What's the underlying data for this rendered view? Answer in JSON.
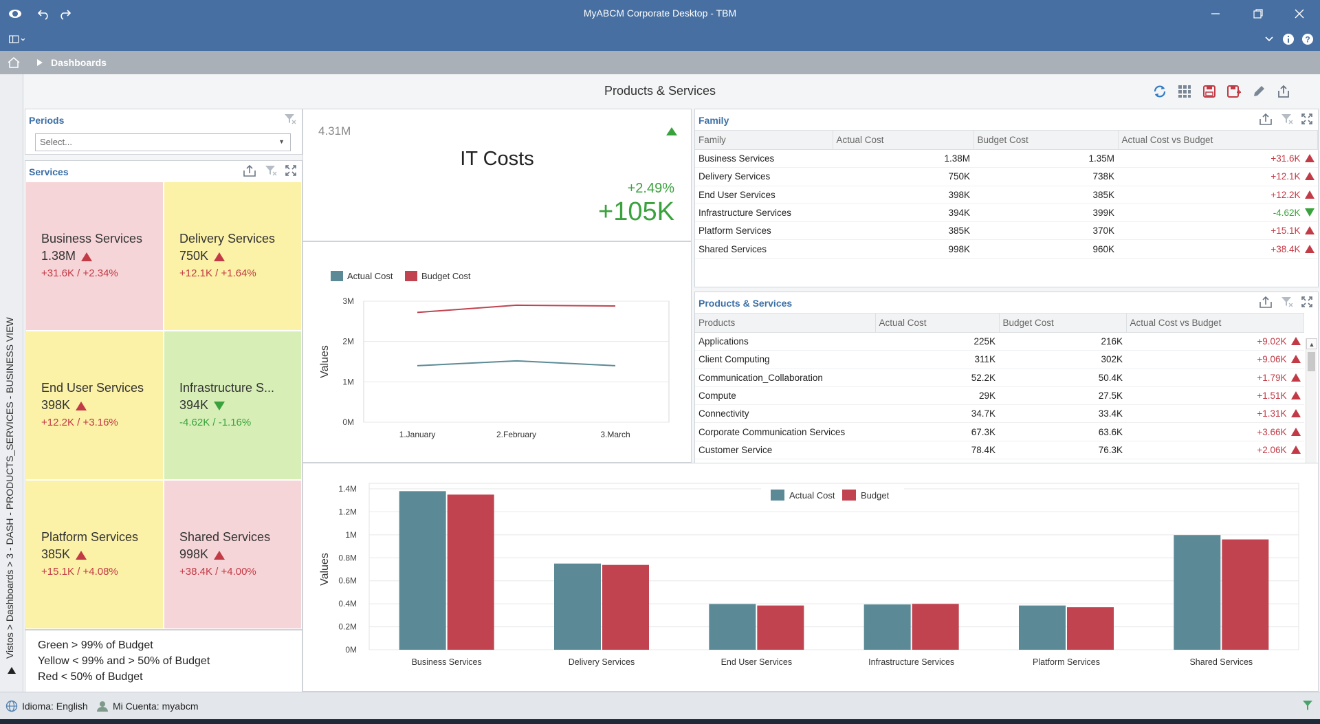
{
  "window": {
    "title": "MyABCM Corporate Desktop - TBM"
  },
  "breadcrumb": {
    "label": "Dashboards"
  },
  "vertical_path": "Vistos > Dashboards > 3 - DASH - PRODUCTS_SERVICES - BUSINESS VIEW",
  "dashboard": {
    "title": "Products & Services"
  },
  "periods": {
    "title": "Periods",
    "placeholder": "Select..."
  },
  "services": {
    "title": "Services",
    "tiles": [
      {
        "name": "Business Services",
        "value": "1.38M",
        "delta": "+31.6K  /  +2.34%",
        "trend": "up",
        "color": "#f6d5d8"
      },
      {
        "name": "Delivery Services",
        "value": "750K",
        "delta": "+12.1K  /  +1.64%",
        "trend": "up",
        "color": "#fbf1a7"
      },
      {
        "name": "End User Services",
        "value": "398K",
        "delta": "+12.2K  /  +3.16%",
        "trend": "up",
        "color": "#fbf1a7"
      },
      {
        "name": "Infrastructure S...",
        "value": "394K",
        "delta": "-4.62K  /  -1.16%",
        "trend": "down",
        "color": "#d7efb7"
      },
      {
        "name": "Platform Services",
        "value": "385K",
        "delta": "+15.1K  /  +4.08%",
        "trend": "up",
        "color": "#fbf1a7"
      },
      {
        "name": "Shared Services",
        "value": "998K",
        "delta": "+38.4K  /  +4.00%",
        "trend": "up",
        "color": "#f6d5d8"
      }
    ],
    "legend": [
      "Green > 99% of Budget",
      "Yellow < 99% and > 50% of Budget",
      "Red < 50% of Budget"
    ]
  },
  "kpi": {
    "target": "4.31M",
    "title": "IT Costs",
    "percent": "+2.49%",
    "absolute": "+105K"
  },
  "family": {
    "title": "Family",
    "columns": [
      "Family",
      "Actual Cost",
      "Budget Cost",
      "Actual Cost vs Budget"
    ],
    "rows": [
      [
        "Business Services",
        "1.38M",
        "1.35M",
        "+31.6K",
        "up"
      ],
      [
        "Delivery Services",
        "750K",
        "738K",
        "+12.1K",
        "up"
      ],
      [
        "End User Services",
        "398K",
        "385K",
        "+12.2K",
        "up"
      ],
      [
        "Infrastructure Services",
        "394K",
        "399K",
        "-4.62K",
        "down"
      ],
      [
        "Platform Services",
        "385K",
        "370K",
        "+15.1K",
        "up"
      ],
      [
        "Shared Services",
        "998K",
        "960K",
        "+38.4K",
        "up"
      ]
    ]
  },
  "products": {
    "title": "Products & Services",
    "columns": [
      "Products",
      "Actual Cost",
      "Budget Cost",
      "Actual Cost vs Budget"
    ],
    "rows": [
      [
        "Applications",
        "225K",
        "216K",
        "+9.02K",
        "up"
      ],
      [
        "Client Computing",
        "311K",
        "302K",
        "+9.06K",
        "up"
      ],
      [
        "Communication_Collaboration",
        "52.2K",
        "50.4K",
        "+1.79K",
        "up"
      ],
      [
        "Compute",
        "29K",
        "27.5K",
        "+1.51K",
        "up"
      ],
      [
        "Connectivity",
        "34.7K",
        "33.4K",
        "+1.31K",
        "up"
      ],
      [
        "Corporate Communication Services",
        "67.3K",
        "63.6K",
        "+3.66K",
        "up"
      ],
      [
        "Customer Service",
        "78.4K",
        "76.3K",
        "+2.06K",
        "up"
      ]
    ]
  },
  "status": {
    "language": "Idioma: English",
    "account": "Mi Cuenta: myabcm"
  },
  "colors": {
    "actual": "#5b8a96",
    "budget": "#c0434f",
    "titlebar": "#476fa1"
  },
  "chart_data": [
    {
      "type": "line",
      "x": [
        "1.January",
        "2.February",
        "3.March"
      ],
      "series": [
        {
          "name": "Actual Cost",
          "values": [
            1.4,
            1.52,
            1.4
          ]
        },
        {
          "name": "Budget Cost",
          "values": [
            2.72,
            2.9,
            2.88
          ]
        }
      ],
      "ylabel": "Values",
      "ylim": [
        0,
        3
      ],
      "yticks": [
        "0M",
        "1M",
        "2M",
        "3M"
      ],
      "legend": "top-left",
      "grid": true
    },
    {
      "type": "bar",
      "categories": [
        "Business Services",
        "Delivery Services",
        "End User Services",
        "Infrastructure Services",
        "Platform Services",
        "Shared Services"
      ],
      "series": [
        {
          "name": "Actual Cost",
          "values": [
            1.38,
            0.75,
            0.398,
            0.394,
            0.385,
            0.998
          ]
        },
        {
          "name": "Budget",
          "values": [
            1.35,
            0.738,
            0.385,
            0.399,
            0.37,
            0.96
          ]
        }
      ],
      "ylabel": "Values",
      "ylim": [
        0,
        1.4
      ],
      "yticks": [
        "0M",
        "0.2M",
        "0.4M",
        "0.6M",
        "0.8M",
        "1M",
        "1.2M",
        "1.4M"
      ],
      "legend": "top-center",
      "grid": true
    }
  ]
}
